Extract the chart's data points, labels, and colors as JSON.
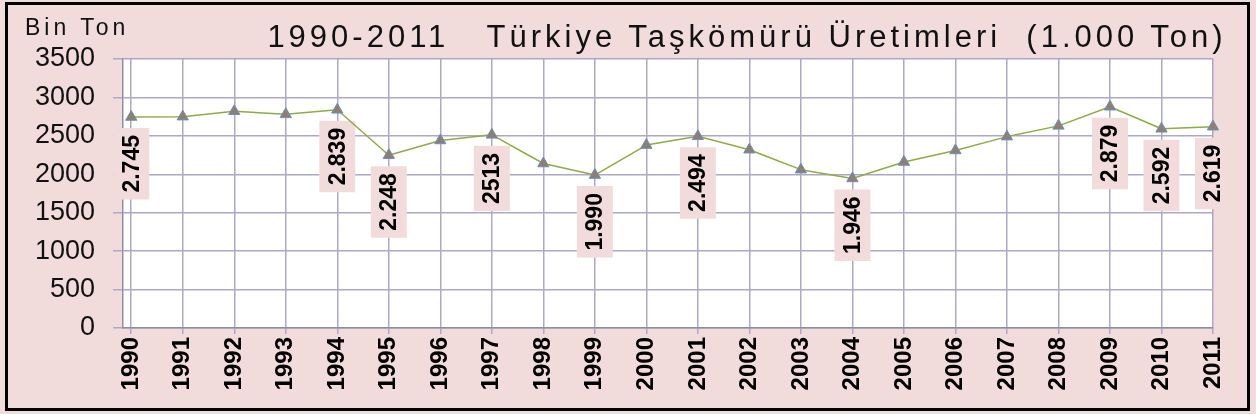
{
  "chart_data": {
    "type": "line",
    "title": "1990-2011   Türkiye Taşkömürü Üretimleri  (1.000 Ton)",
    "ylabel": "Bin Ton",
    "categories": [
      "1990",
      "1991",
      "1992",
      "1993",
      "1994",
      "1995",
      "1996",
      "1997",
      "1998",
      "1999",
      "2000",
      "2001",
      "2002",
      "2003",
      "2004",
      "2005",
      "2006",
      "2007",
      "2008",
      "2009",
      "2010",
      "2011"
    ],
    "series": [
      {
        "color": "#8fab48",
        "values": [
          2745,
          2750,
          2820,
          2780,
          2839,
          2248,
          2440,
          2513,
          2140,
          1990,
          2380,
          2494,
          2320,
          2060,
          1946,
          2160,
          2310,
          2490,
          2630,
          2879,
          2592,
          2619
        ],
        "value_labels": [
          "2.745",
          null,
          null,
          null,
          "2.839",
          "2.248",
          null,
          "2513",
          null,
          "1.990",
          null,
          "2.494",
          null,
          null,
          "1.946",
          null,
          null,
          null,
          null,
          "2.879",
          "2.592",
          "2.619"
        ]
      }
    ],
    "ylim": [
      0,
      3500
    ],
    "yticks": [
      0,
      500,
      1000,
      1500,
      2000,
      2500,
      3000,
      3500
    ],
    "grid": true,
    "marker": "triangle",
    "line_style": "solid"
  }
}
